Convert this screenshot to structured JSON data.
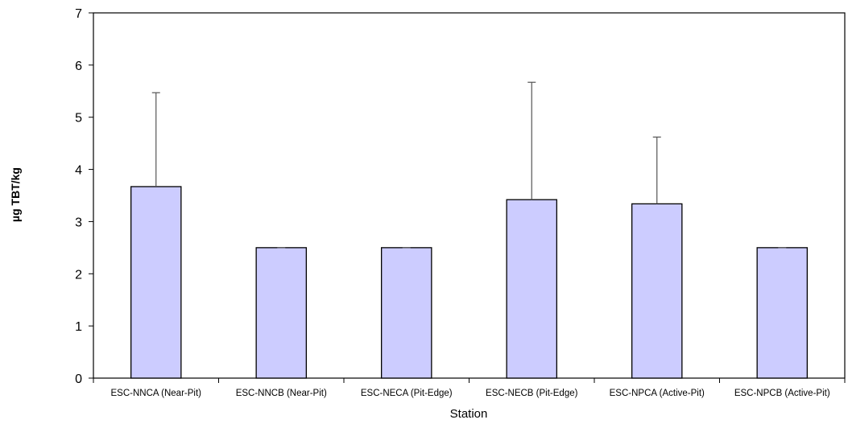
{
  "chart_data": {
    "type": "bar",
    "title": "",
    "xlabel": "Station",
    "ylabel": "µg TBT/kg",
    "ylim": [
      0,
      7
    ],
    "yticks": [
      0,
      1,
      2,
      3,
      4,
      5,
      6,
      7
    ],
    "grid": false,
    "legend": "none",
    "categories": [
      "ESC-NNCA (Near-Pit)",
      "ESC-NNCB (Near-Pit)",
      "ESC-NECA (Pit-Edge)",
      "ESC-NECB (Pit-Edge)",
      "ESC-NPCA (Active-Pit)",
      "ESC-NPCB (Active-Pit)"
    ],
    "series": [
      {
        "values": [
          3.67,
          2.5,
          2.5,
          3.42,
          3.34,
          2.5
        ],
        "error_upper": [
          1.8,
          0.0,
          0.0,
          2.25,
          1.28,
          0.0
        ],
        "color": "#ccccff",
        "edge_color": "#000000"
      }
    ]
  }
}
